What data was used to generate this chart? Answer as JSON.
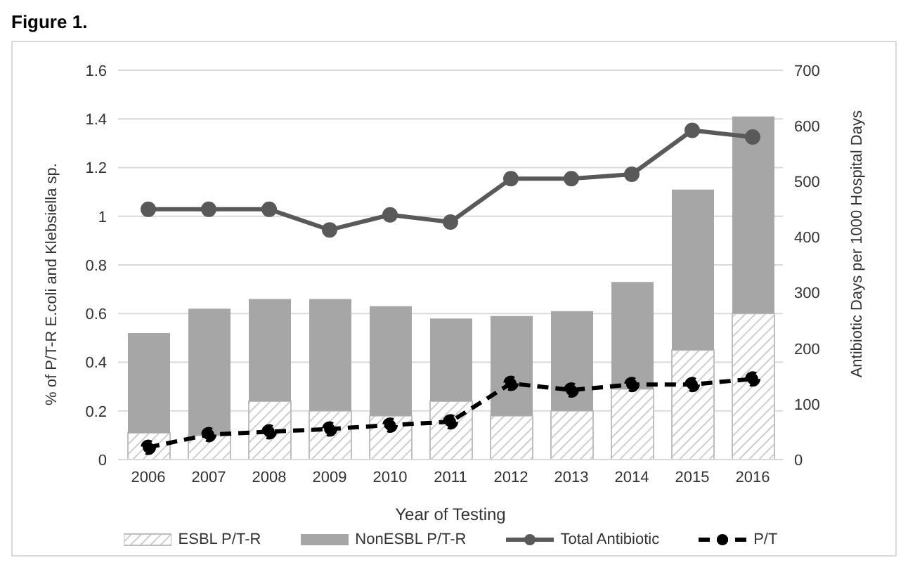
{
  "chart_data": {
    "type": "bar",
    "title": "Figure 1.",
    "xlabel": "Year of Testing",
    "ylabel": "% of P/T-R E.coli and Klebsiella sp.",
    "y2label": "Antibiotic Days per 1000 Hospital Days",
    "categories": [
      "2006",
      "2007",
      "2008",
      "2009",
      "2010",
      "2011",
      "2012",
      "2013",
      "2014",
      "2015",
      "2016"
    ],
    "stacked": true,
    "grid": "y",
    "legend": "bottom",
    "marker": "circle",
    "ylim": [
      0,
      1.6
    ],
    "yticks": [
      0,
      0.2,
      0.4,
      0.6,
      0.8,
      1,
      1.2,
      1.4,
      1.6
    ],
    "y2lim": [
      0,
      700
    ],
    "y2ticks": [
      0,
      100,
      200,
      300,
      400,
      500,
      600,
      700
    ],
    "series": [
      {
        "name": "ESBL P/T-R",
        "color": "#bfbfbf",
        "values": [
          0.11,
          0.1,
          0.24,
          0.2,
          0.18,
          0.24,
          0.18,
          0.2,
          0.29,
          0.45,
          0.6
        ]
      },
      {
        "name": "NonESBL P/T-R",
        "color": "#a6a6a6",
        "values": [
          0.41,
          0.52,
          0.42,
          0.46,
          0.45,
          0.34,
          0.41,
          0.41,
          0.44,
          0.66,
          0.81
        ]
      },
      {
        "name": "Total Antibiotic",
        "type": "line",
        "axis": "y2",
        "color": "#595959",
        "line_style": "solid",
        "values": [
          450,
          450,
          450,
          413,
          440,
          427,
          505,
          505,
          513,
          592,
          580
        ]
      },
      {
        "name": "P/T",
        "type": "line",
        "axis": "y2",
        "color": "#000000",
        "line_style": "dashed",
        "values": [
          22,
          45,
          50,
          55,
          62,
          68,
          137,
          125,
          135,
          135,
          145
        ]
      }
    ]
  }
}
